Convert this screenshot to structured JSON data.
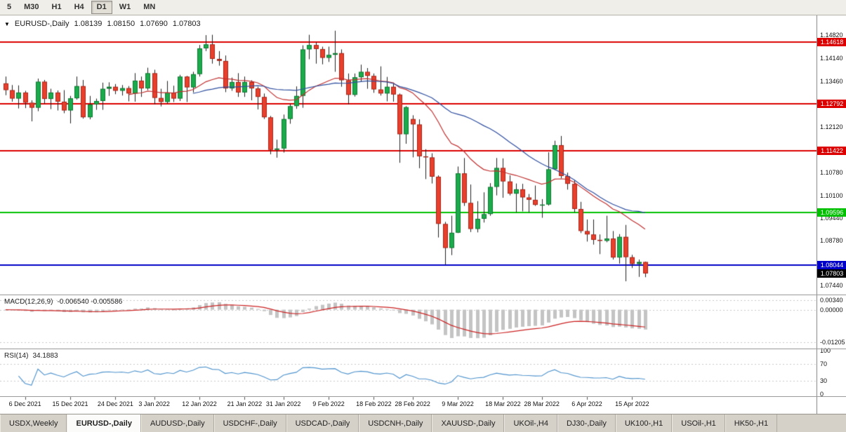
{
  "toolbar": {
    "buttons": [
      {
        "label": "5",
        "active": false
      },
      {
        "label": "M30",
        "active": false
      },
      {
        "label": "H1",
        "active": false
      },
      {
        "label": "H4",
        "active": false
      },
      {
        "label": "D1",
        "active": true
      },
      {
        "label": "W1",
        "active": false
      },
      {
        "label": "MN",
        "active": false
      }
    ]
  },
  "chart_data": [
    {
      "type": "candlestick",
      "title": "EURUSD-,Daily",
      "ohlc": {
        "open": "1.08139",
        "high": "1.08150",
        "low": "1.07690",
        "close": "1.07803"
      },
      "y_axis": {
        "min": 1.072,
        "max": 1.154,
        "ticks": [
          {
            "label": "1.14820",
            "value": 1.1482
          },
          {
            "label": "1.14140",
            "value": 1.1414
          },
          {
            "label": "1.13460",
            "value": 1.1346
          },
          {
            "label": "1.12120",
            "value": 1.1212
          },
          {
            "label": "1.10780",
            "value": 1.1078
          },
          {
            "label": "1.10100",
            "value": 1.101
          },
          {
            "label": "1.09440",
            "value": 1.0944
          },
          {
            "label": "1.08780",
            "value": 1.0878
          },
          {
            "label": "1.07440",
            "value": 1.0744
          }
        ]
      },
      "hlines": [
        {
          "label": "1.14618",
          "value": 1.14618,
          "color": "#dd0000"
        },
        {
          "label": "1.12792",
          "value": 1.12792,
          "color": "#dd0000"
        },
        {
          "label": "1.11422",
          "value": 1.11422,
          "color": "#dd0000"
        },
        {
          "label": "1.09596",
          "value": 1.09596,
          "color": "#00c000"
        },
        {
          "label": "1.08044",
          "value": 1.08044,
          "color": "#0000c8"
        }
      ],
      "current_price": {
        "label": "1.07803",
        "value": 1.07803,
        "color": "#000000"
      },
      "overlays": [
        {
          "name": "ma-fast",
          "type": "ema",
          "period": 20,
          "color": "#c03030"
        },
        {
          "name": "ma-slow",
          "type": "sma",
          "period": 30,
          "color": "#2f4f9f"
        }
      ],
      "colors": {
        "up": "#1cab4c",
        "up_border": "#0e7a31",
        "down": "#e8402c",
        "down_border": "#a8261a",
        "wick": "#222222"
      },
      "x_labels": [
        {
          "text": "6 Dec 2021",
          "i": 3
        },
        {
          "text": "15 Dec 2021",
          "i": 10
        },
        {
          "text": "24 Dec 2021",
          "i": 17
        },
        {
          "text": "3 Jan 2022",
          "i": 23
        },
        {
          "text": "12 Jan 2022",
          "i": 30
        },
        {
          "text": "21 Jan 2022",
          "i": 37
        },
        {
          "text": "31 Jan 2022",
          "i": 43
        },
        {
          "text": "9 Feb 2022",
          "i": 50
        },
        {
          "text": "18 Feb 2022",
          "i": 57
        },
        {
          "text": "28 Feb 2022",
          "i": 63
        },
        {
          "text": "9 Mar 2022",
          "i": 70
        },
        {
          "text": "18 Mar 2022",
          "i": 77
        },
        {
          "text": "28 Mar 2022",
          "i": 83
        },
        {
          "text": "6 Apr 2022",
          "i": 90
        },
        {
          "text": "15 Apr 2022",
          "i": 97
        }
      ],
      "candles": [
        [
          1.134,
          1.136,
          1.1305,
          1.132
        ],
        [
          1.132,
          1.1335,
          1.1286,
          1.1295
        ],
        [
          1.1295,
          1.1334,
          1.1266,
          1.1313
        ],
        [
          1.1313,
          1.1318,
          1.1267,
          1.1283
        ],
        [
          1.1283,
          1.129,
          1.1228,
          1.1268
        ],
        [
          1.1268,
          1.1354,
          1.1258,
          1.1345
        ],
        [
          1.1345,
          1.135,
          1.128,
          1.1294
        ],
        [
          1.1294,
          1.1324,
          1.1264,
          1.1313
        ],
        [
          1.1313,
          1.1319,
          1.126,
          1.1286
        ],
        [
          1.1286,
          1.132,
          1.1252,
          1.126
        ],
        [
          1.126,
          1.1303,
          1.1222,
          1.1296
        ],
        [
          1.1296,
          1.136,
          1.1292,
          1.1332
        ],
        [
          1.1332,
          1.135,
          1.1236,
          1.124
        ],
        [
          1.124,
          1.1303,
          1.1234,
          1.1278
        ],
        [
          1.1278,
          1.1295,
          1.1262,
          1.1288
        ],
        [
          1.1288,
          1.1342,
          1.1262,
          1.1324
        ],
        [
          1.1324,
          1.1343,
          1.1303,
          1.133
        ],
        [
          1.133,
          1.1338,
          1.1308,
          1.1318
        ],
        [
          1.1318,
          1.1335,
          1.1304,
          1.1326
        ],
        [
          1.1326,
          1.1332,
          1.1287,
          1.131
        ],
        [
          1.131,
          1.137,
          1.1286,
          1.1348
        ],
        [
          1.1348,
          1.136,
          1.13,
          1.1325
        ],
        [
          1.1325,
          1.1386,
          1.132,
          1.137
        ],
        [
          1.137,
          1.138,
          1.1278,
          1.1297
        ],
        [
          1.1297,
          1.1324,
          1.1272,
          1.1285
        ],
        [
          1.1285,
          1.1347,
          1.128,
          1.1313
        ],
        [
          1.1313,
          1.1333,
          1.1285,
          1.1295
        ],
        [
          1.1295,
          1.1365,
          1.1288,
          1.136
        ],
        [
          1.136,
          1.1362,
          1.1285,
          1.1328
        ],
        [
          1.1328,
          1.1374,
          1.1313,
          1.1367
        ],
        [
          1.1367,
          1.1453,
          1.136,
          1.1443
        ],
        [
          1.1443,
          1.1482,
          1.1435,
          1.1455
        ],
        [
          1.1455,
          1.1483,
          1.1398,
          1.1412
        ],
        [
          1.1412,
          1.1435,
          1.1392,
          1.1406
        ],
        [
          1.1406,
          1.1422,
          1.1314,
          1.1325
        ],
        [
          1.1325,
          1.1357,
          1.1318,
          1.1344
        ],
        [
          1.1344,
          1.137,
          1.13,
          1.1313
        ],
        [
          1.1313,
          1.136,
          1.13,
          1.1344
        ],
        [
          1.1344,
          1.1349,
          1.129,
          1.1325
        ],
        [
          1.1325,
          1.133,
          1.1263,
          1.13
        ],
        [
          1.13,
          1.131,
          1.1235,
          1.124
        ],
        [
          1.124,
          1.1244,
          1.1131,
          1.1144
        ],
        [
          1.1144,
          1.1174,
          1.1121,
          1.1148
        ],
        [
          1.1148,
          1.1248,
          1.1136,
          1.1235
        ],
        [
          1.1235,
          1.128,
          1.1221,
          1.1273
        ],
        [
          1.1273,
          1.1331,
          1.1265,
          1.1303
        ],
        [
          1.1303,
          1.1452,
          1.1268,
          1.144
        ],
        [
          1.144,
          1.1483,
          1.1411,
          1.1453
        ],
        [
          1.1453,
          1.1461,
          1.1398,
          1.1441
        ],
        [
          1.1441,
          1.1448,
          1.1396,
          1.1415
        ],
        [
          1.1415,
          1.1448,
          1.1403,
          1.1424
        ],
        [
          1.1424,
          1.1495,
          1.1374,
          1.1429
        ],
        [
          1.1429,
          1.144,
          1.133,
          1.1349
        ],
        [
          1.1349,
          1.1369,
          1.1278,
          1.1306
        ],
        [
          1.1306,
          1.1369,
          1.1301,
          1.1358
        ],
        [
          1.1358,
          1.1395,
          1.1345,
          1.1374
        ],
        [
          1.1374,
          1.1385,
          1.1324,
          1.1362
        ],
        [
          1.1362,
          1.1369,
          1.1312,
          1.1322
        ],
        [
          1.1322,
          1.139,
          1.1304,
          1.131
        ],
        [
          1.131,
          1.1359,
          1.1287,
          1.133
        ],
        [
          1.133,
          1.1342,
          1.1286,
          1.1307
        ],
        [
          1.1307,
          1.131,
          1.1106,
          1.119
        ],
        [
          1.119,
          1.1273,
          1.1162,
          1.127
        ],
        [
          1.1235,
          1.1246,
          1.1122,
          1.1219
        ],
        [
          1.1219,
          1.1234,
          1.109,
          1.1125
        ],
        [
          1.1125,
          1.1146,
          1.1058,
          1.1122
        ],
        [
          1.1122,
          1.1134,
          1.1045,
          1.1065
        ],
        [
          1.1065,
          1.1069,
          1.0886,
          1.0926
        ],
        [
          1.0926,
          1.0932,
          1.0806,
          1.0855
        ],
        [
          1.0855,
          1.095,
          1.0834,
          1.09
        ],
        [
          1.09,
          1.1095,
          1.0899,
          1.1075
        ],
        [
          1.1075,
          1.112,
          1.0979,
          1.0988
        ],
        [
          1.0988,
          1.1042,
          1.0902,
          1.0911
        ],
        [
          1.0911,
          1.0993,
          1.0901,
          1.0941
        ],
        [
          1.0941,
          1.1019,
          1.093,
          1.0955
        ],
        [
          1.0955,
          1.1046,
          1.095,
          1.1035
        ],
        [
          1.1035,
          1.112,
          1.101,
          1.1091
        ],
        [
          1.1091,
          1.1119,
          1.1003,
          1.1051
        ],
        [
          1.1051,
          1.1069,
          1.101,
          1.1015
        ],
        [
          1.1015,
          1.1045,
          1.096,
          1.1028
        ],
        [
          1.1028,
          1.1044,
          1.0963,
          1.1004
        ],
        [
          1.1004,
          1.1014,
          1.096,
          1.0997
        ],
        [
          1.0997,
          1.1039,
          1.0979,
          1.0982
        ],
        [
          1.0982,
          1.0999,
          1.0944,
          1.0983
        ],
        [
          1.0983,
          1.1137,
          1.098,
          1.1087
        ],
        [
          1.1087,
          1.1171,
          1.1084,
          1.1158
        ],
        [
          1.1158,
          1.1185,
          1.106,
          1.1067
        ],
        [
          1.1067,
          1.1077,
          1.1027,
          1.1044
        ],
        [
          1.1044,
          1.1055,
          1.096,
          1.097
        ],
        [
          1.097,
          1.0991,
          1.0899,
          1.0905
        ],
        [
          1.0905,
          1.0939,
          1.0874,
          1.0895
        ],
        [
          1.0895,
          1.0939,
          1.0865,
          1.0879
        ],
        [
          1.0879,
          1.0895,
          1.0837,
          1.0876
        ],
        [
          1.0876,
          1.095,
          1.0872,
          1.0883
        ],
        [
          1.0883,
          1.0905,
          1.0821,
          1.0827
        ],
        [
          1.0827,
          1.0896,
          1.0809,
          1.0888
        ],
        [
          1.0888,
          1.0923,
          1.0757,
          1.0828
        ],
        [
          1.0828,
          1.0835,
          1.0796,
          1.0808
        ],
        [
          1.0808,
          1.0821,
          1.077,
          1.0814
        ],
        [
          1.0814,
          1.0815,
          1.0769,
          1.078
        ]
      ]
    },
    {
      "type": "macd",
      "label": "MACD(12,26,9)",
      "values_text": "-0.006540 -0.005586",
      "params": {
        "fast": 12,
        "slow": 26,
        "signal": 9
      },
      "range": {
        "min": -0.0138,
        "max": 0.0048
      },
      "axis_ticks": [
        {
          "label": "0.00340",
          "value": 0.0034
        },
        {
          "label": "0.00000",
          "value": 0
        },
        {
          "label": "-0.01205",
          "value": -0.01205
        }
      ],
      "colors": {
        "histogram": "#c4c4c4",
        "signal": "#cc2222"
      }
    },
    {
      "type": "rsi",
      "label": "RSI(14)",
      "value_text": "34.1883",
      "period": 14,
      "levels": [
        70,
        30
      ],
      "axis_ticks": [
        {
          "label": "100",
          "value": 100
        },
        {
          "label": "70",
          "value": 70
        },
        {
          "label": "30",
          "value": 30
        },
        {
          "label": "0",
          "value": 0
        }
      ],
      "color": "#4f94cd"
    }
  ],
  "tabs": [
    {
      "label": "USDX,Weekly",
      "active": false
    },
    {
      "label": "EURUSD-,Daily",
      "active": true
    },
    {
      "label": "AUDUSD-,Daily",
      "active": false
    },
    {
      "label": "USDCHF-,Daily",
      "active": false
    },
    {
      "label": "USDCAD-,Daily",
      "active": false
    },
    {
      "label": "USDCNH-,Daily",
      "active": false
    },
    {
      "label": "XAUUSD-,Daily",
      "active": false
    },
    {
      "label": "UKOil-,H4",
      "active": false
    },
    {
      "label": "DJ30-,Daily",
      "active": false
    },
    {
      "label": "UK100-,H1",
      "active": false
    },
    {
      "label": "USOil-,H1",
      "active": false
    },
    {
      "label": "HK50-,H1",
      "active": false
    }
  ]
}
